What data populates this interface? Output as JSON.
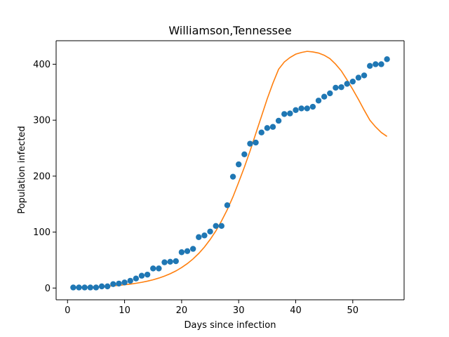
{
  "chart_data": {
    "type": "scatter",
    "title": "Williamson,Tennessee",
    "xlabel": "Days since infection",
    "ylabel": "Population infected",
    "xlim": [
      -2.0,
      59.0
    ],
    "ylim": [
      -21.0,
      442.0
    ],
    "xticks": [
      0,
      10,
      20,
      30,
      40,
      50
    ],
    "yticks": [
      0,
      100,
      200,
      300,
      400
    ],
    "grid": false,
    "series": [
      {
        "kind": "scatter",
        "color": "#1f77b4",
        "x": [
          1,
          2,
          3,
          4,
          5,
          6,
          7,
          8,
          9,
          10,
          11,
          12,
          13,
          14,
          15,
          16,
          17,
          18,
          19,
          20,
          21,
          22,
          23,
          24,
          25,
          26,
          27,
          28,
          29,
          30,
          31,
          32,
          33,
          34,
          35,
          36,
          37,
          38,
          39,
          40,
          41,
          42,
          43,
          44,
          45,
          46,
          47,
          48,
          49,
          50,
          51,
          52,
          53,
          54,
          55,
          56
        ],
        "y": [
          1,
          1,
          1,
          1,
          1,
          3,
          3,
          7,
          8,
          10,
          13,
          17,
          22,
          24,
          35,
          35,
          46,
          47,
          48,
          64,
          66,
          70,
          91,
          94,
          101,
          111,
          111,
          148,
          199,
          221,
          239,
          258,
          260,
          278,
          286,
          288,
          299,
          311,
          312,
          318,
          321,
          321,
          324,
          335,
          342,
          348,
          358,
          359,
          365,
          369,
          376,
          380,
          397,
          400,
          400,
          409
        ]
      },
      {
        "kind": "line",
        "color": "#ff7f0e",
        "x": [
          1,
          2,
          3,
          4,
          5,
          6,
          7,
          8,
          9,
          10,
          11,
          12,
          13,
          14,
          15,
          16,
          17,
          18,
          19,
          20,
          21,
          22,
          23,
          24,
          25,
          26,
          27,
          28,
          29,
          30,
          31,
          32,
          33,
          34,
          35,
          36,
          37,
          38,
          39,
          40,
          41,
          42,
          43,
          44,
          45,
          46,
          47,
          48,
          49,
          50,
          51,
          52,
          53,
          54,
          55,
          56
        ],
        "y": [
          1,
          1.2,
          1.5,
          1.8,
          2.2,
          2.7,
          3.3,
          4,
          4.8,
          5.8,
          7,
          8.5,
          10.2,
          12.3,
          14.8,
          17.8,
          21.3,
          25.6,
          30.6,
          36.6,
          43.7,
          52,
          61.8,
          73.3,
          86.7,
          102,
          120,
          140,
          163,
          189,
          216,
          245,
          276,
          307,
          338,
          366,
          391,
          404,
          412,
          418,
          421,
          423,
          422,
          420,
          416,
          410,
          400,
          388,
          372,
          355,
          337,
          318,
          300,
          288,
          278,
          271
        ]
      }
    ]
  }
}
